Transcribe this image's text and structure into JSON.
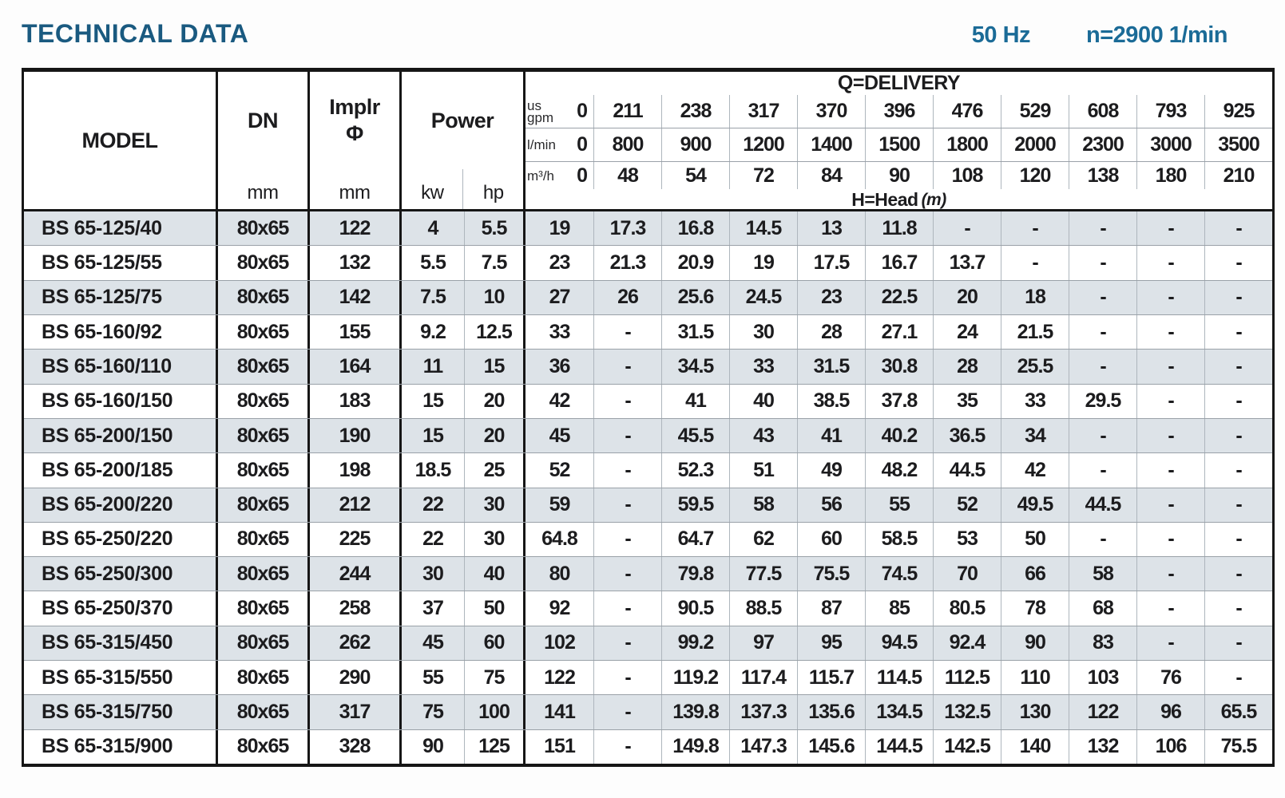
{
  "header": {
    "title": "TECHNICAL DATA",
    "frequency": "50 Hz",
    "speed": "n=2900 1/min"
  },
  "colors": {
    "title": "#1a5a80",
    "accent": "#1b6b97",
    "stripe": "#dde3e8",
    "line_dark": "#161616",
    "line_mid": "#9aa1a8",
    "line_light": "#aeb6bd"
  },
  "table": {
    "columns": {
      "model": "MODEL",
      "dn": "DN",
      "implr_line1": "Implr",
      "implr_line2": "Φ",
      "power": "Power",
      "unit_mm": "mm",
      "unit_kw": "kw",
      "unit_hp": "hp"
    },
    "delivery": {
      "title": "Q=DELIVERY",
      "head_label": "H=Head",
      "head_unit": "(m)",
      "unit_rows": [
        {
          "label_top": "us",
          "label": "gpm",
          "values": [
            "0",
            "211",
            "238",
            "317",
            "370",
            "396",
            "476",
            "529",
            "608",
            "793",
            "925"
          ]
        },
        {
          "label_top": "",
          "label": "l/min",
          "values": [
            "0",
            "800",
            "900",
            "1200",
            "1400",
            "1500",
            "1800",
            "2000",
            "2300",
            "3000",
            "3500"
          ]
        },
        {
          "label_top": "",
          "label": "m³/h",
          "values": [
            "0",
            "48",
            "54",
            "72",
            "84",
            "90",
            "108",
            "120",
            "138",
            "180",
            "210"
          ]
        }
      ]
    },
    "rows": [
      {
        "model": "BS 65-125/40",
        "dn": "80x65",
        "implr": "122",
        "kw": "4",
        "hp": "5.5",
        "head": [
          "19",
          "17.3",
          "16.8",
          "14.5",
          "13",
          "11.8",
          "-",
          "-",
          "-",
          "-",
          "-"
        ]
      },
      {
        "model": "BS 65-125/55",
        "dn": "80x65",
        "implr": "132",
        "kw": "5.5",
        "hp": "7.5",
        "head": [
          "23",
          "21.3",
          "20.9",
          "19",
          "17.5",
          "16.7",
          "13.7",
          "-",
          "-",
          "-",
          "-"
        ]
      },
      {
        "model": "BS 65-125/75",
        "dn": "80x65",
        "implr": "142",
        "kw": "7.5",
        "hp": "10",
        "head": [
          "27",
          "26",
          "25.6",
          "24.5",
          "23",
          "22.5",
          "20",
          "18",
          "-",
          "-",
          "-"
        ]
      },
      {
        "model": "BS 65-160/92",
        "dn": "80x65",
        "implr": "155",
        "kw": "9.2",
        "hp": "12.5",
        "head": [
          "33",
          "-",
          "31.5",
          "30",
          "28",
          "27.1",
          "24",
          "21.5",
          "-",
          "-",
          "-"
        ]
      },
      {
        "model": "BS 65-160/110",
        "dn": "80x65",
        "implr": "164",
        "kw": "11",
        "hp": "15",
        "head": [
          "36",
          "-",
          "34.5",
          "33",
          "31.5",
          "30.8",
          "28",
          "25.5",
          "-",
          "-",
          "-"
        ]
      },
      {
        "model": "BS 65-160/150",
        "dn": "80x65",
        "implr": "183",
        "kw": "15",
        "hp": "20",
        "head": [
          "42",
          "-",
          "41",
          "40",
          "38.5",
          "37.8",
          "35",
          "33",
          "29.5",
          "-",
          "-"
        ]
      },
      {
        "model": "BS 65-200/150",
        "dn": "80x65",
        "implr": "190",
        "kw": "15",
        "hp": "20",
        "head": [
          "45",
          "-",
          "45.5",
          "43",
          "41",
          "40.2",
          "36.5",
          "34",
          "-",
          "-",
          "-"
        ]
      },
      {
        "model": "BS 65-200/185",
        "dn": "80x65",
        "implr": "198",
        "kw": "18.5",
        "hp": "25",
        "head": [
          "52",
          "-",
          "52.3",
          "51",
          "49",
          "48.2",
          "44.5",
          "42",
          "-",
          "-",
          "-"
        ]
      },
      {
        "model": "BS 65-200/220",
        "dn": "80x65",
        "implr": "212",
        "kw": "22",
        "hp": "30",
        "head": [
          "59",
          "-",
          "59.5",
          "58",
          "56",
          "55",
          "52",
          "49.5",
          "44.5",
          "-",
          "-"
        ]
      },
      {
        "model": "BS 65-250/220",
        "dn": "80x65",
        "implr": "225",
        "kw": "22",
        "hp": "30",
        "head": [
          "64.8",
          "-",
          "64.7",
          "62",
          "60",
          "58.5",
          "53",
          "50",
          "-",
          "-",
          "-"
        ]
      },
      {
        "model": "BS 65-250/300",
        "dn": "80x65",
        "implr": "244",
        "kw": "30",
        "hp": "40",
        "head": [
          "80",
          "-",
          "79.8",
          "77.5",
          "75.5",
          "74.5",
          "70",
          "66",
          "58",
          "-",
          "-"
        ]
      },
      {
        "model": "BS 65-250/370",
        "dn": "80x65",
        "implr": "258",
        "kw": "37",
        "hp": "50",
        "head": [
          "92",
          "-",
          "90.5",
          "88.5",
          "87",
          "85",
          "80.5",
          "78",
          "68",
          "-",
          "-"
        ]
      },
      {
        "model": "BS 65-315/450",
        "dn": "80x65",
        "implr": "262",
        "kw": "45",
        "hp": "60",
        "head": [
          "102",
          "-",
          "99.2",
          "97",
          "95",
          "94.5",
          "92.4",
          "90",
          "83",
          "-",
          "-"
        ]
      },
      {
        "model": "BS 65-315/550",
        "dn": "80x65",
        "implr": "290",
        "kw": "55",
        "hp": "75",
        "head": [
          "122",
          "-",
          "119.2",
          "117.4",
          "115.7",
          "114.5",
          "112.5",
          "110",
          "103",
          "76",
          "-"
        ]
      },
      {
        "model": "BS 65-315/750",
        "dn": "80x65",
        "implr": "317",
        "kw": "75",
        "hp": "100",
        "head": [
          "141",
          "-",
          "139.8",
          "137.3",
          "135.6",
          "134.5",
          "132.5",
          "130",
          "122",
          "96",
          "65.5"
        ]
      },
      {
        "model": "BS 65-315/900",
        "dn": "80x65",
        "implr": "328",
        "kw": "90",
        "hp": "125",
        "head": [
          "151",
          "-",
          "149.8",
          "147.3",
          "145.6",
          "144.5",
          "142.5",
          "140",
          "132",
          "106",
          "75.5"
        ]
      }
    ]
  }
}
